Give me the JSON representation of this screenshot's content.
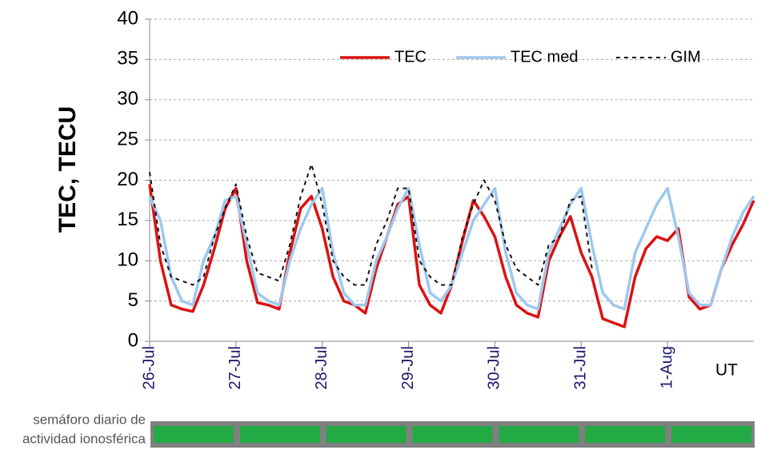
{
  "chart_data": {
    "type": "line",
    "ylabel": "TEC, TECU",
    "xlabel": "UT",
    "x": [
      0,
      3,
      6,
      9,
      12,
      15,
      18,
      21,
      24,
      27,
      30,
      33,
      36,
      39,
      42,
      45,
      48,
      51,
      54,
      57,
      60,
      63,
      66,
      69,
      72,
      75,
      78,
      81,
      84,
      87,
      90,
      93,
      96,
      99,
      102,
      105,
      108,
      111,
      114,
      117,
      120,
      123,
      126,
      129,
      132,
      135,
      138,
      141,
      144,
      147,
      150,
      153,
      156,
      159,
      162,
      165,
      168
    ],
    "xlim": [
      0,
      168
    ],
    "xticks": [
      {
        "value": 0,
        "label": "26-Jul"
      },
      {
        "value": 24,
        "label": "27-Jul"
      },
      {
        "value": 48,
        "label": "28-Jul"
      },
      {
        "value": 72,
        "label": "29-Jul"
      },
      {
        "value": 96,
        "label": "30-Jul"
      },
      {
        "value": 120,
        "label": "31-Jul"
      },
      {
        "value": 144,
        "label": "1-Aug"
      }
    ],
    "ylim": [
      0,
      40
    ],
    "yticks": [
      0,
      5,
      10,
      15,
      20,
      25,
      30,
      35,
      40
    ],
    "grid": true,
    "legend": "top-right",
    "series": [
      {
        "name": "TEC",
        "color": "#dd1111",
        "style": "solid",
        "width": 3.5,
        "values": [
          19.5,
          10,
          4.5,
          4,
          3.7,
          7,
          11.5,
          16.5,
          19,
          10,
          4.8,
          4.5,
          4,
          11,
          16.5,
          18,
          14,
          8,
          5,
          4.5,
          3.5,
          9,
          13,
          17,
          18,
          7,
          4.5,
          3.5,
          7,
          12.5,
          17.5,
          15.5,
          13,
          8,
          4.5,
          3.5,
          3,
          10,
          13,
          15.5,
          11,
          8,
          2.8,
          2.3,
          1.8,
          8,
          11.5,
          13,
          12.5,
          14,
          5.5,
          4,
          4.5,
          9,
          12,
          14.5,
          17.5
        ]
      },
      {
        "name": "TEC med",
        "color": "#9ec8ee",
        "style": "solid",
        "width": 3.5,
        "values": [
          18,
          15,
          8,
          5,
          4.5,
          10,
          13,
          17.5,
          18,
          12,
          6,
          5,
          4.5,
          10,
          14,
          17,
          19,
          11,
          6,
          4.5,
          4.5,
          10,
          13,
          16.5,
          19,
          12,
          6,
          5,
          7,
          11,
          15,
          17,
          19,
          11,
          6,
          4.5,
          4,
          11,
          14,
          17,
          19,
          12,
          6,
          4.5,
          4,
          11,
          14,
          17,
          19,
          13,
          6,
          4.5,
          4.5,
          9,
          13,
          16,
          18
        ]
      },
      {
        "name": "GIM",
        "color": "#111111",
        "style": "dashed",
        "width": 2,
        "values": [
          21,
          12,
          8,
          7.5,
          7,
          8,
          13,
          16.5,
          19.5,
          13,
          8.5,
          8,
          7.5,
          12,
          18,
          22,
          17,
          10,
          8,
          7,
          7,
          12,
          15,
          19,
          19,
          10,
          8,
          7,
          7,
          13,
          17,
          20,
          17.5,
          12,
          9,
          8,
          7,
          12,
          13,
          17.5,
          18,
          9,
          null,
          null,
          null,
          null,
          null,
          null,
          null,
          null,
          null,
          null,
          null,
          null,
          null,
          null,
          null
        ]
      }
    ],
    "status_bar": {
      "label": [
        "semáforo diario de",
        "actividad ionosférica"
      ],
      "colors": [
        "#22aa44",
        "#22aa44",
        "#22aa44",
        "#22aa44",
        "#22aa44",
        "#22aa44",
        "#22aa44"
      ]
    }
  }
}
